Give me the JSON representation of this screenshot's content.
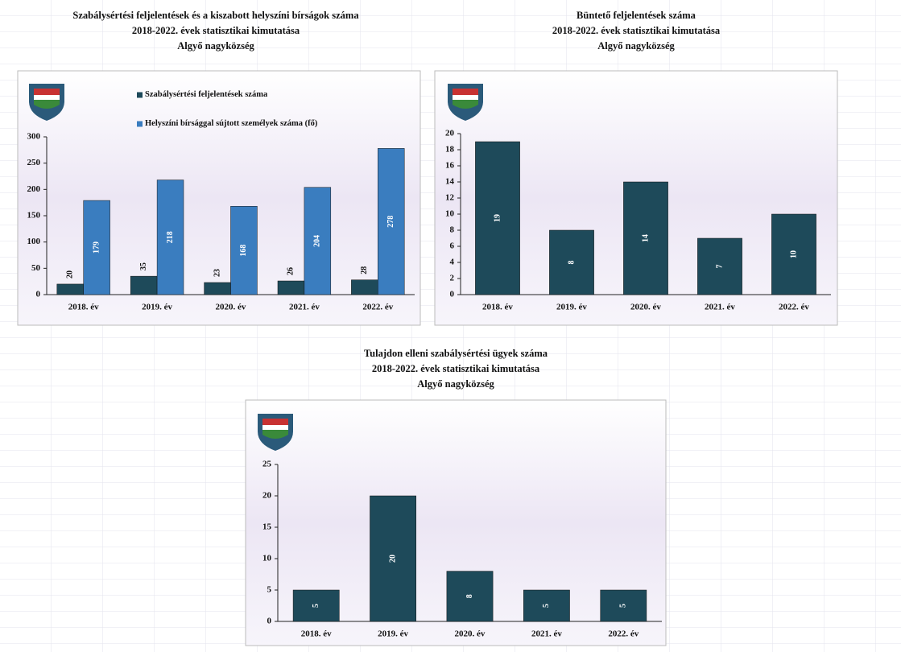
{
  "chart_data": [
    {
      "type": "bar",
      "title": [
        "Szabálysértési feljelentések és a kiszabott helyszíni bírságok száma",
        "2018-2022. évek statisztikai kimutatása",
        "Algyő nagyközség"
      ],
      "categories": [
        "2018. év",
        "2019. év",
        "2020. év",
        "2021. év",
        "2022. év"
      ],
      "series": [
        {
          "name": "Szabálysértési feljelentések száma",
          "color": "#1e4a5a",
          "values": [
            20,
            35,
            23,
            26,
            28
          ]
        },
        {
          "name": "Helyszíni bírsággal sújtott személyek száma (fő)",
          "color": "#3a7dbf",
          "values": [
            179,
            218,
            168,
            204,
            278
          ]
        }
      ],
      "ylim": [
        0,
        300
      ],
      "yticks": [
        0,
        50,
        100,
        150,
        200,
        250,
        300
      ],
      "legend": "top-left"
    },
    {
      "type": "bar",
      "title": [
        "Büntető feljelentések száma",
        "2018-2022. évek statisztikai kimutatása",
        "Algyő nagyközség"
      ],
      "categories": [
        "2018. év",
        "2019. év",
        "2020. év",
        "2021. év",
        "2022. év"
      ],
      "values": [
        19,
        8,
        14,
        7,
        10
      ],
      "color": "#1e4a5a",
      "ylim": [
        0,
        20
      ],
      "yticks": [
        0,
        2,
        4,
        6,
        8,
        10,
        12,
        14,
        16,
        18,
        20
      ]
    },
    {
      "type": "bar",
      "title": [
        "Tulajdon elleni szabálysértési ügyek száma",
        "2018-2022. évek statisztikai kimutatása",
        "Algyő nagyközség"
      ],
      "categories": [
        "2018. év",
        "2019. év",
        "2020. év",
        "2021. év",
        "2022. év"
      ],
      "values": [
        5,
        20,
        8,
        5,
        5
      ],
      "color": "#1e4a5a",
      "ylim": [
        0,
        25
      ],
      "yticks": [
        0,
        5,
        10,
        15,
        20,
        25
      ]
    }
  ]
}
